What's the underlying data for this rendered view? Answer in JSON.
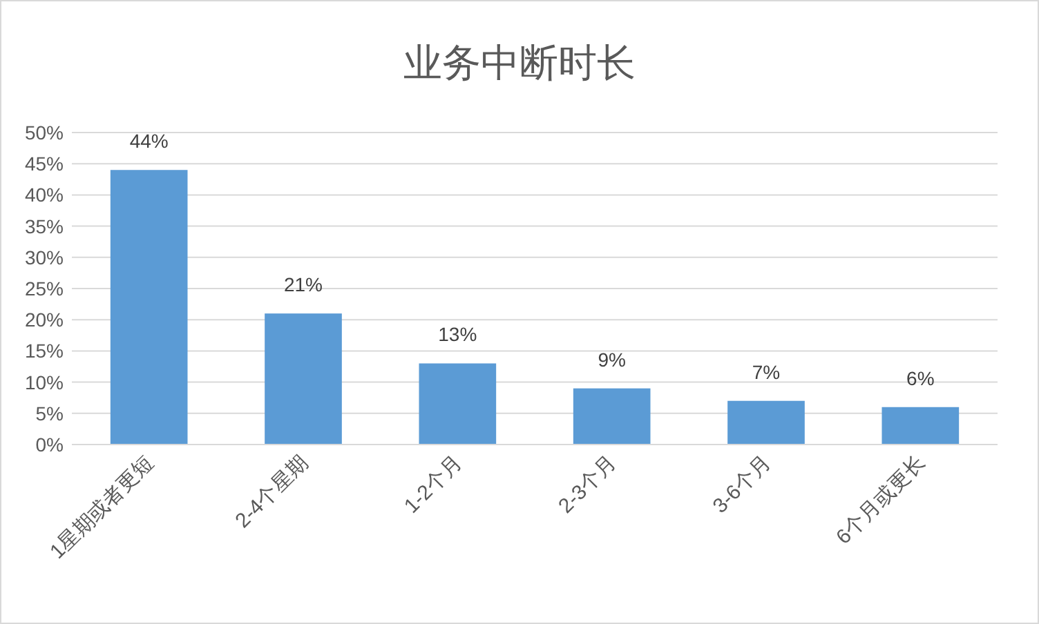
{
  "chart_data": {
    "type": "bar",
    "title": "业务中断时长",
    "categories": [
      "1星期或者更短",
      "2-4个星期",
      "1-2个月",
      "2-3个月",
      "3-6个月",
      "6个月或更长"
    ],
    "values": [
      44,
      21,
      13,
      9,
      7,
      6
    ],
    "value_labels": [
      "44%",
      "21%",
      "13%",
      "9%",
      "7%",
      "6%"
    ],
    "color": "#5b9bd5",
    "ylim": [
      0,
      50
    ],
    "yticks": [
      {
        "value": 0,
        "label": "0%"
      },
      {
        "value": 5,
        "label": "5%"
      },
      {
        "value": 10,
        "label": "10%"
      },
      {
        "value": 15,
        "label": "15%"
      },
      {
        "value": 20,
        "label": "20%"
      },
      {
        "value": 25,
        "label": "25%"
      },
      {
        "value": 30,
        "label": "30%"
      },
      {
        "value": 35,
        "label": "35%"
      },
      {
        "value": 40,
        "label": "40%"
      },
      {
        "value": 45,
        "label": "45%"
      },
      {
        "value": 50,
        "label": "50%"
      }
    ],
    "grid": "y"
  }
}
